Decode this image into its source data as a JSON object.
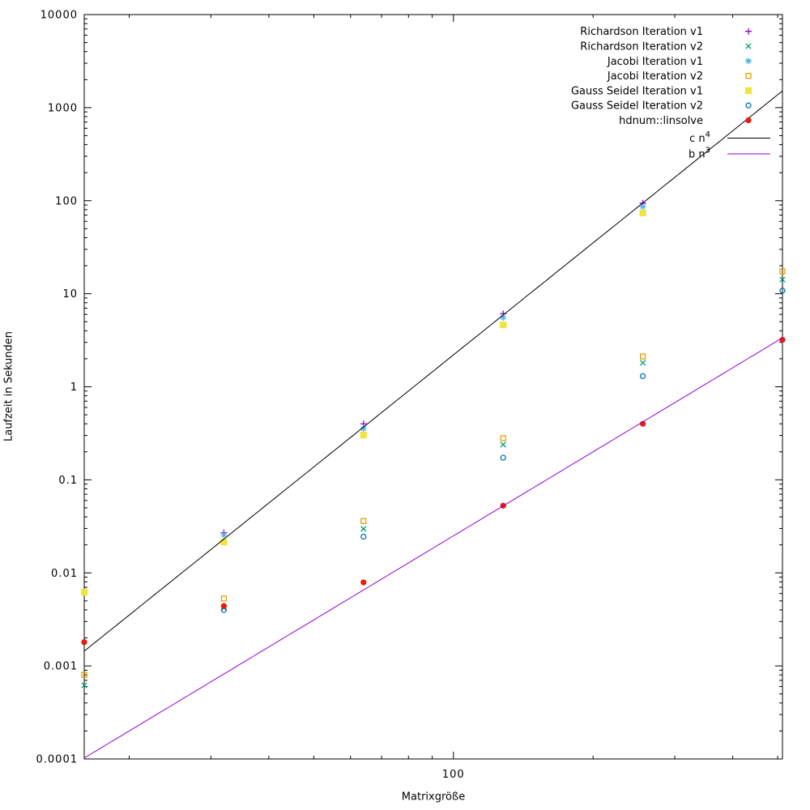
{
  "chart_data": {
    "type": "scatter",
    "title": "",
    "xlabel": "Matrixgröße",
    "ylabel": "Laufzeit in Sekunden",
    "xscale": "log",
    "yscale": "log",
    "xlim": [
      16,
      512
    ],
    "ylim": [
      0.0001,
      10000
    ],
    "grid": false,
    "legend_position": "top-right-inside",
    "background_color": "#ffffff",
    "border_color": "#000000",
    "x_ticks": {
      "major": [
        100
      ],
      "labels": [
        "100"
      ],
      "minor": [
        20,
        30,
        40,
        50,
        60,
        70,
        80,
        90,
        200,
        300,
        400,
        500
      ]
    },
    "y_ticks": {
      "major": [
        0.0001,
        0.001,
        0.01,
        0.1,
        1,
        10,
        100,
        1000,
        10000
      ],
      "labels": [
        "0.0001",
        "0.001",
        "0.01",
        "0.1",
        "1",
        "10",
        "100",
        "1000",
        "10000"
      ]
    },
    "series": [
      {
        "name": "Richardson Iteration v1",
        "marker": "plus",
        "color": "#9400d3",
        "points": [
          [
            16,
            0.0062
          ],
          [
            32,
            0.027
          ],
          [
            64,
            0.4
          ],
          [
            128,
            6.1
          ],
          [
            256,
            94
          ]
        ]
      },
      {
        "name": "Richardson Iteration v2",
        "marker": "cross",
        "color": "#009e73",
        "points": [
          [
            16,
            0.00062
          ],
          [
            32,
            0.0042
          ],
          [
            64,
            0.0297
          ],
          [
            128,
            0.239
          ],
          [
            256,
            1.81
          ],
          [
            512,
            14.2
          ]
        ]
      },
      {
        "name": "Jacobi Iteration v1",
        "marker": "asterisk",
        "color": "#56b4e9",
        "points": [
          [
            16,
            0.0062
          ],
          [
            32,
            0.0256
          ],
          [
            64,
            0.356
          ],
          [
            128,
            5.55
          ],
          [
            256,
            86.4
          ]
        ]
      },
      {
        "name": "Jacobi Iteration v2",
        "marker": "square-open",
        "color": "#e69f00",
        "points": [
          [
            16,
            0.0008
          ],
          [
            32,
            0.0053
          ],
          [
            64,
            0.036
          ],
          [
            128,
            0.28
          ],
          [
            256,
            2.12
          ],
          [
            512,
            17.4
          ]
        ]
      },
      {
        "name": "Gauss Seidel Iteration v1",
        "marker": "square-filled",
        "color": "#f0e442",
        "points": [
          [
            16,
            0.0062
          ],
          [
            32,
            0.0215
          ],
          [
            64,
            0.303
          ],
          [
            128,
            4.63
          ],
          [
            256,
            73.8
          ]
        ]
      },
      {
        "name": "Gauss Seidel Iteration v2",
        "marker": "circle-open",
        "color": "#0072b2",
        "points": [
          [
            16,
            0.0018
          ],
          [
            32,
            0.004
          ],
          [
            64,
            0.0245
          ],
          [
            128,
            0.173
          ],
          [
            256,
            1.3
          ],
          [
            512,
            10.8
          ]
        ]
      },
      {
        "name": "hdnum::linsolve",
        "marker": "circle-filled",
        "color": "#e51e10",
        "points": [
          [
            16,
            0.0018
          ],
          [
            32,
            0.0044
          ],
          [
            64,
            0.0079
          ],
          [
            128,
            0.0527
          ],
          [
            256,
            0.4
          ],
          [
            512,
            3.2
          ]
        ]
      }
    ],
    "lines": [
      {
        "name": "c n4",
        "label_base": "c n",
        "label_sup": "4",
        "color": "#000000",
        "coeff": 2.2e-08,
        "power": 4
      },
      {
        "name": "b n3",
        "label_base": "b n",
        "label_sup": "3",
        "color": "#9400d3",
        "coeff": 2.5e-08,
        "power": 3
      }
    ]
  }
}
